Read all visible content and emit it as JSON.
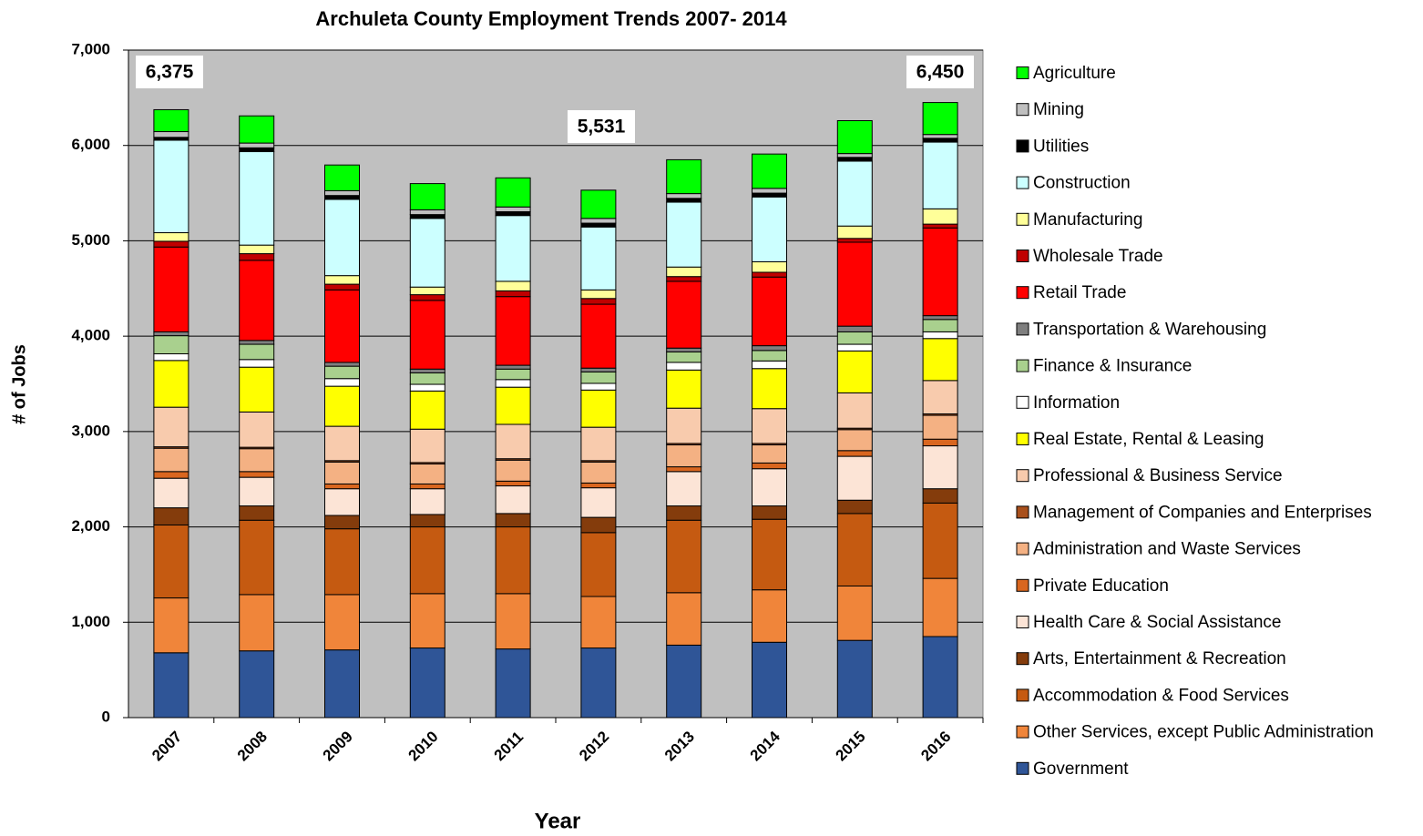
{
  "chart_data": {
    "type": "stacked_bar",
    "title": "Archuleta County Employment  Trends 2007- 2014",
    "x_label": "Year",
    "y_label": "# of Jobs",
    "categories": [
      "2007",
      "2008",
      "2009",
      "2010",
      "2011",
      "2012",
      "2013",
      "2014",
      "2015",
      "2016"
    ],
    "ylim": [
      0,
      7000
    ],
    "yticks": [
      0,
      {
        "value": 1000,
        "label": "1,000"
      },
      {
        "value": 2000,
        "label": "2,000"
      },
      {
        "value": 3000,
        "label": "3,000"
      },
      {
        "value": 4000,
        "label": "4,000"
      },
      {
        "value": 5000,
        "label": "5,000"
      },
      {
        "value": 6000,
        "label": "6,000"
      },
      {
        "value": 7000,
        "label": "7,000"
      }
    ],
    "grid": true,
    "legend": "right",
    "annotations": [
      "6,375",
      "5,531",
      "6,450"
    ],
    "series": [
      {
        "name": "Government",
        "color": "#2F5597",
        "values": [
          680,
          700,
          710,
          730,
          720,
          730,
          760,
          790,
          810,
          850
        ]
      },
      {
        "name": "Other Services, except Public Administration",
        "color": "#F0853A",
        "values": [
          575,
          590,
          580,
          570,
          580,
          540,
          550,
          550,
          570,
          610
        ]
      },
      {
        "name": "Accommodation & Food Services",
        "color": "#C55A11",
        "values": [
          765,
          780,
          690,
          700,
          700,
          670,
          760,
          740,
          760,
          790
        ]
      },
      {
        "name": "Arts, Entertainment & Recreation",
        "color": "#843C0C",
        "values": [
          180,
          150,
          140,
          130,
          140,
          160,
          150,
          140,
          140,
          150
        ]
      },
      {
        "name": "Health Care & Social Assistance",
        "color": "#FCE4D6",
        "values": [
          310,
          300,
          280,
          270,
          290,
          310,
          360,
          390,
          460,
          450
        ]
      },
      {
        "name": "Private Education",
        "color": "#D9661F",
        "values": [
          70,
          60,
          50,
          50,
          50,
          50,
          50,
          60,
          60,
          70
        ]
      },
      {
        "name": "Administration and Waste Services",
        "color": "#F4B183",
        "values": [
          245,
          240,
          230,
          210,
          220,
          220,
          230,
          190,
          220,
          250
        ]
      },
      {
        "name": "Management of Companies and Enterprises",
        "color": "#A9501C",
        "values": [
          15,
          15,
          15,
          15,
          15,
          15,
          15,
          15,
          15,
          15
        ]
      },
      {
        "name": "Professional & Business Service",
        "color": "#F8CBAD",
        "values": [
          415,
          370,
          360,
          350,
          360,
          350,
          370,
          365,
          370,
          350
        ]
      },
      {
        "name": "Real Estate, Rental & Leasing",
        "color": "#FFFF00",
        "values": [
          490,
          470,
          420,
          400,
          390,
          390,
          400,
          420,
          440,
          440
        ]
      },
      {
        "name": "Information",
        "color": "#FFFFFF",
        "values": [
          70,
          80,
          80,
          70,
          80,
          70,
          80,
          80,
          70,
          70
        ]
      },
      {
        "name": "Finance & Insurance",
        "color": "#A9D08E",
        "values": [
          190,
          160,
          130,
          120,
          110,
          120,
          110,
          110,
          130,
          130
        ]
      },
      {
        "name": "Transportation & Warehousing",
        "color": "#7F7F7F",
        "values": [
          40,
          40,
          40,
          40,
          40,
          40,
          40,
          50,
          60,
          40
        ]
      },
      {
        "name": "Retail Trade",
        "color": "#FF0000",
        "values": [
          890,
          840,
          760,
          720,
          720,
          670,
          700,
          720,
          880,
          920
        ]
      },
      {
        "name": "Wholesale Trade",
        "color": "#C00000",
        "values": [
          60,
          70,
          60,
          60,
          60,
          60,
          50,
          50,
          40,
          40
        ]
      },
      {
        "name": "Manufacturing",
        "color": "#FFFF99",
        "values": [
          90,
          90,
          90,
          80,
          100,
          90,
          100,
          110,
          130,
          160
        ]
      },
      {
        "name": "Construction",
        "color": "#CCFFFF",
        "values": [
          970,
          980,
          800,
          720,
          690,
          660,
          680,
          680,
          680,
          700
        ]
      },
      {
        "name": "Utilities",
        "color": "#000000",
        "values": [
          30,
          40,
          40,
          40,
          40,
          40,
          40,
          40,
          40,
          40
        ]
      },
      {
        "name": "Mining",
        "color": "#BFBFBF",
        "values": [
          60,
          50,
          50,
          50,
          50,
          50,
          50,
          50,
          40,
          40
        ]
      },
      {
        "name": "Agriculture",
        "color": "#00FF00",
        "values": [
          230,
          285,
          270,
          275,
          305,
          296,
          355,
          360,
          345,
          335
        ]
      }
    ]
  }
}
